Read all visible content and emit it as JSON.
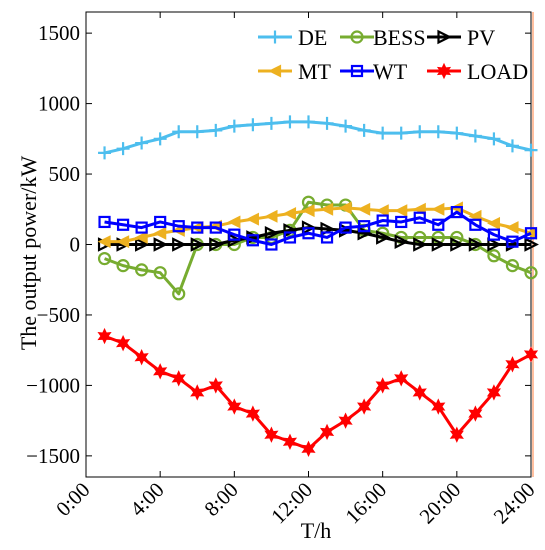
{
  "chart_data": {
    "type": "line",
    "title": "",
    "xlabel": "T/h",
    "ylabel": "The output power/kW",
    "xlim": [
      0,
      24
    ],
    "ylim": [
      -1650,
      1650
    ],
    "x_ticks": [
      0,
      4,
      8,
      12,
      16,
      20,
      24
    ],
    "x_tick_labels": [
      "0:00",
      "4:00",
      "8:00",
      "12:00",
      "16:00",
      "20:00",
      "24:00"
    ],
    "y_ticks": [
      -1500,
      -1000,
      -500,
      0,
      500,
      1000,
      1500
    ],
    "y_tick_labels": [
      "−1500",
      "−1000",
      "−500",
      "0",
      "500",
      "1000",
      "1500"
    ],
    "legend_position": "top-right",
    "x": [
      1,
      2,
      3,
      4,
      5,
      6,
      7,
      8,
      9,
      10,
      11,
      12,
      13,
      14,
      15,
      16,
      17,
      18,
      19,
      20,
      21,
      22,
      23,
      24
    ],
    "series": [
      {
        "name": "DE",
        "color": "#4dbeee",
        "marker": "plus",
        "values": [
          650,
          680,
          720,
          750,
          800,
          800,
          810,
          840,
          850,
          860,
          870,
          870,
          860,
          840,
          810,
          790,
          790,
          800,
          800,
          790,
          770,
          750,
          700,
          670
        ]
      },
      {
        "name": "BESS",
        "color": "#77ac30",
        "marker": "circle",
        "values": [
          -100,
          -150,
          -180,
          -200,
          -350,
          0,
          0,
          0,
          50,
          50,
          100,
          300,
          280,
          280,
          100,
          80,
          50,
          50,
          50,
          50,
          0,
          -80,
          -150,
          -200
        ]
      },
      {
        "name": "PV",
        "color": "#000000",
        "marker": "triangle-right",
        "values": [
          0,
          0,
          0,
          0,
          0,
          0,
          0,
          30,
          50,
          80,
          100,
          120,
          110,
          100,
          80,
          50,
          20,
          0,
          0,
          0,
          0,
          0,
          0,
          0
        ]
      },
      {
        "name": "MT",
        "color": "#edb120",
        "marker": "triangle-left",
        "values": [
          20,
          20,
          50,
          80,
          100,
          120,
          130,
          160,
          180,
          200,
          220,
          240,
          250,
          260,
          250,
          240,
          240,
          250,
          250,
          260,
          200,
          150,
          120,
          80
        ]
      },
      {
        "name": "WT",
        "color": "#0000ff",
        "marker": "square",
        "values": [
          160,
          140,
          120,
          160,
          130,
          120,
          120,
          70,
          30,
          0,
          50,
          80,
          50,
          120,
          130,
          170,
          160,
          190,
          140,
          230,
          140,
          70,
          20,
          80
        ]
      },
      {
        "name": "LOAD",
        "color": "#ff0000",
        "marker": "hexagram",
        "values": [
          -650,
          -700,
          -800,
          -900,
          -950,
          -1050,
          -1000,
          -1150,
          -1200,
          -1350,
          -1400,
          -1450,
          -1330,
          -1250,
          -1150,
          -1000,
          -950,
          -1050,
          -1150,
          -1350,
          -1200,
          -1050,
          -850,
          -780
        ]
      }
    ]
  }
}
